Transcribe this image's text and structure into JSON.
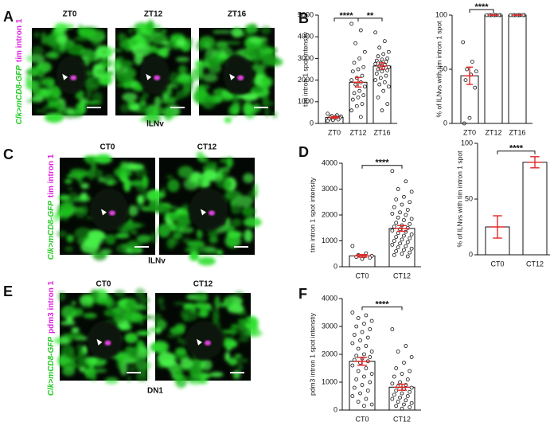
{
  "panels": [
    {
      "letter": "A",
      "channels": [
        "Clk>mCD8-GFP",
        "tim intron 1"
      ],
      "images": [
        "ZT0",
        "ZT12",
        "ZT16"
      ],
      "caption": "lLNv"
    },
    {
      "letter": "C",
      "channels": [
        "Clk>mCD8-GFP",
        "tim intron 1"
      ],
      "images": [
        "CT0",
        "CT12"
      ],
      "caption": "lLNv"
    },
    {
      "letter": "E",
      "channels": [
        "Clk>mCD8-GFP",
        "pdm3 intron 1"
      ],
      "images": [
        "CT0",
        "CT12"
      ],
      "caption": "DN1"
    }
  ],
  "chart_data": [
    {
      "type": "bar",
      "panel": "B",
      "ylabel": "tim intron 1 spot intensity",
      "categories": [
        "ZT0",
        "ZT12",
        "ZT16"
      ],
      "values": [
        280,
        1900,
        2650
      ],
      "errors": [
        40,
        220,
        150
      ],
      "points": [
        [
          450,
          380,
          350,
          320,
          300,
          280,
          260,
          230,
          200,
          180,
          150,
          120
        ],
        [
          4600,
          4300,
          3700,
          3300,
          3000,
          2800,
          2600,
          2500,
          2400,
          2200,
          2100,
          2000,
          1900,
          1800,
          1700,
          1500,
          1400,
          1300,
          1200,
          1100,
          900,
          800,
          600,
          300
        ],
        [
          4200,
          3800,
          3500,
          3300,
          3200,
          3100,
          3000,
          2950,
          2900,
          2850,
          2800,
          2750,
          2700,
          2650,
          2600,
          2550,
          2500,
          2450,
          2400,
          2300,
          2200,
          2100,
          2000,
          1900,
          1800,
          1700,
          1500,
          1200,
          900,
          600
        ]
      ],
      "ylim": [
        0,
        5000
      ],
      "yticks": [
        0,
        1000,
        2000,
        3000,
        4000,
        5000
      ],
      "annotations": [
        {
          "text": "****",
          "pair": [
            "ZT0",
            "ZT12"
          ]
        },
        {
          "text": "**",
          "pair": [
            "ZT12",
            "ZT16"
          ]
        }
      ]
    },
    {
      "type": "bar",
      "ylabel": "% of lLNvs with tim intron 1 spot",
      "categories": [
        "ZT0",
        "ZT12",
        "ZT16"
      ],
      "values": [
        44,
        100,
        100
      ],
      "errors": [
        8,
        0,
        0
      ],
      "points": [
        [
          75,
          57,
          50,
          48,
          45,
          40,
          33,
          5,
          0
        ],
        [
          100,
          100,
          100,
          100,
          100,
          100,
          100,
          100
        ],
        [
          100,
          100,
          100,
          100,
          100,
          100,
          100,
          100
        ]
      ],
      "ylim": [
        0,
        100
      ],
      "yticks": [
        0,
        50,
        100
      ],
      "annotations": [
        {
          "text": "****",
          "pair": [
            "ZT0",
            "ZT12"
          ]
        }
      ]
    },
    {
      "type": "bar",
      "panel": "D",
      "ylabel": "tim intron 1 spot intensity",
      "categories": [
        "CT0",
        "CT12"
      ],
      "values": [
        420,
        1480
      ],
      "errors": [
        50,
        110
      ],
      "points": [
        [
          800,
          520,
          450,
          420,
          400,
          380,
          350,
          300
        ],
        [
          3700,
          3300,
          3000,
          2900,
          2700,
          2600,
          2500,
          2400,
          2300,
          2200,
          2100,
          2050,
          2000,
          1900,
          1850,
          1800,
          1700,
          1650,
          1600,
          1550,
          1500,
          1450,
          1400,
          1350,
          1300,
          1250,
          1200,
          1150,
          1100,
          1050,
          1000,
          950,
          900,
          850,
          800,
          750,
          700,
          650,
          600,
          550,
          500,
          450,
          400
        ]
      ],
      "ylim": [
        0,
        4000
      ],
      "yticks": [
        0,
        1000,
        2000,
        3000,
        4000
      ],
      "annotations": [
        {
          "text": "****",
          "pair": [
            "CT0",
            "CT12"
          ]
        }
      ]
    },
    {
      "type": "bar",
      "ylabel": "% of lLNvs with tim intron 1 spot",
      "categories": [
        "CT0",
        "CT12"
      ],
      "values": [
        25,
        83
      ],
      "errors": [
        10,
        5
      ],
      "ylim": [
        0,
        100
      ],
      "yticks": [
        0,
        50,
        100
      ],
      "annotations": [
        {
          "text": "****",
          "pair": [
            "CT0",
            "CT12"
          ]
        }
      ]
    },
    {
      "type": "bar",
      "panel": "F",
      "ylabel": "pdm3 intron 1 spot intenstiy",
      "categories": [
        "CT0",
        "CT12"
      ],
      "values": [
        1750,
        820
      ],
      "errors": [
        140,
        110
      ],
      "points": [
        [
          3500,
          3400,
          3300,
          3200,
          3100,
          3000,
          2900,
          2800,
          2700,
          2600,
          2500,
          2400,
          2300,
          2200,
          2100,
          2000,
          1950,
          1900,
          1850,
          1800,
          1750,
          1700,
          1600,
          1500,
          1400,
          1300,
          1200,
          1100,
          1000,
          900,
          800,
          700,
          600,
          500,
          400,
          300,
          200,
          150
        ],
        [
          2900,
          2300,
          2100,
          1900,
          1700,
          1500,
          1400,
          1300,
          1200,
          1100,
          1000,
          950,
          900,
          850,
          800,
          750,
          700,
          650,
          600,
          550,
          500,
          450,
          400,
          350,
          300,
          250,
          200,
          150,
          100,
          50
        ]
      ],
      "ylim": [
        0,
        4000
      ],
      "yticks": [
        0,
        1000,
        2000,
        3000,
        4000
      ],
      "annotations": [
        {
          "text": "****",
          "pair": [
            "CT0",
            "CT12"
          ]
        }
      ]
    }
  ]
}
